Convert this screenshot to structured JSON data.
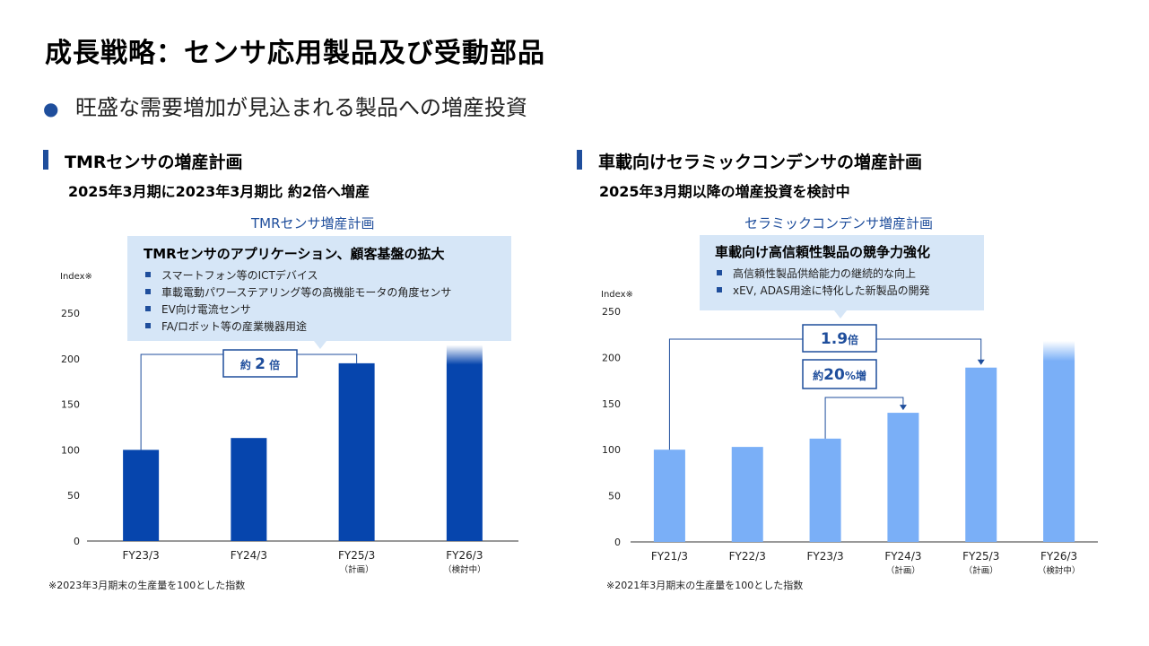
{
  "slide": {
    "title": "成長戦略：センサ応用製品及び受動部品",
    "bullet": "旺盛な需要増加が見込まれる製品への増産投資"
  },
  "left": {
    "heading": "TMRセンサの増産計画",
    "subheading": "2025年3月期に2023年3月期比 約2倍へ増産",
    "chart_title": "TMRセンサ増産計画",
    "callout": {
      "title": "TMRセンサのアプリケーション、顧客基盤の拡大",
      "items": [
        "スマートフォン等のICTデバイス",
        "車載電動パワーステアリング等の高機能モータの角度センサ",
        "EV向け電流センサ",
        "FA/ロボット等の産業機器用途"
      ]
    },
    "annotation": {
      "prefix": "約",
      "value": "2",
      "suffix": "倍"
    },
    "footnote": "※2023年3月期末の生産量を100とした指数"
  },
  "right": {
    "heading": "車載向けセラミックコンデンサの増産計画",
    "subheading": "2025年3月期以降の増産投資を検討中",
    "chart_title": "セラミックコンデンサ増産計画",
    "callout": {
      "title": "車載向け高信頼性製品の競争力強化",
      "items": [
        "高信頼性製品供給能力の継続的な向上",
        "xEV, ADAS用途に特化した新製品の開発"
      ]
    },
    "annotation1": {
      "value": "1.9",
      "suffix": "倍"
    },
    "annotation2": {
      "prefix": "約",
      "value": "20",
      "suffix": "%増"
    },
    "footnote": "※2021年3月期末の生産量を100とした指数"
  },
  "chart_data": [
    {
      "type": "bar",
      "categories": [
        "FY23/3",
        "FY24/3",
        "FY25/3",
        "FY26/3"
      ],
      "sublabels": [
        "",
        "",
        "（計画）",
        "（検討中）"
      ],
      "values": [
        100,
        113,
        195,
        215
      ],
      "faded_top": [
        false,
        false,
        false,
        true
      ],
      "ylabel": "Index※",
      "yticks": [
        0,
        50,
        100,
        150,
        200,
        250
      ],
      "ylim": [
        0,
        250
      ],
      "color": "#0645ad"
    },
    {
      "type": "bar",
      "categories": [
        "FY21/3",
        "FY22/3",
        "FY23/3",
        "FY24/3",
        "FY25/3",
        "FY26/3"
      ],
      "sublabels": [
        "",
        "",
        "",
        "（計画）",
        "（計画）",
        "（検討中）"
      ],
      "values": [
        100,
        103,
        112,
        140,
        189,
        218
      ],
      "faded_top": [
        false,
        false,
        false,
        false,
        false,
        true
      ],
      "ylabel": "Index※",
      "yticks": [
        0,
        50,
        100,
        150,
        200,
        250
      ],
      "ylim": [
        0,
        250
      ],
      "color": "#7aaff7"
    }
  ]
}
